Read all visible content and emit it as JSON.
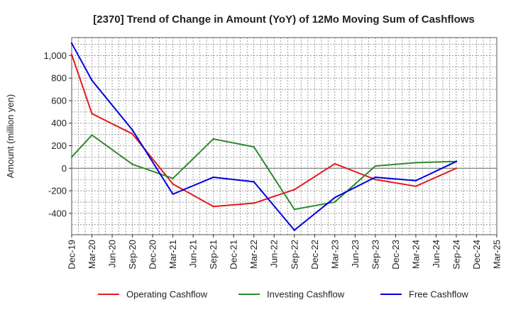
{
  "chart_data": {
    "type": "line",
    "title": "[2370]  Trend of Change in Amount (YoY) of 12Mo Moving Sum of Cashflows",
    "xlabel": "",
    "ylabel": "Amount (million yen)",
    "categories": [
      "Dec-19",
      "Mar-20",
      "Jun-20",
      "Sep-20",
      "Dec-20",
      "Mar-21",
      "Jun-21",
      "Sep-21",
      "Dec-21",
      "Mar-22",
      "Jun-22",
      "Sep-22",
      "Dec-22",
      "Mar-23",
      "Jun-23",
      "Sep-23",
      "Dec-23",
      "Mar-24",
      "Jun-24",
      "Sep-24",
      "Dec-24",
      "Mar-25"
    ],
    "ylim": [
      -590,
      1160
    ],
    "yticks": [
      -400,
      -200,
      0,
      200,
      400,
      600,
      800,
      1000
    ],
    "ytick_labels": [
      "-400",
      "-200",
      "0",
      "200",
      "400",
      "600",
      "800",
      "1,000"
    ],
    "grid": true,
    "series": [
      {
        "name": "Operating Cashflow",
        "color": "#e41a1c",
        "values": [
          1010,
          485,
          null,
          305,
          null,
          -140,
          null,
          -340,
          null,
          -310,
          null,
          -190,
          null,
          40,
          null,
          -100,
          null,
          -160,
          null,
          0,
          null,
          null
        ]
      },
      {
        "name": "Investing Cashflow",
        "color": "#2e8b2e",
        "values": [
          100,
          295,
          null,
          35,
          null,
          -90,
          null,
          260,
          null,
          190,
          null,
          -365,
          null,
          -300,
          null,
          20,
          null,
          50,
          null,
          60,
          null,
          null
        ]
      },
      {
        "name": "Free Cashflow",
        "color": "#0000dd",
        "values": [
          1110,
          780,
          null,
          340,
          null,
          -230,
          null,
          -80,
          null,
          -120,
          null,
          -550,
          null,
          -260,
          null,
          -80,
          null,
          -110,
          null,
          60,
          null,
          null
        ]
      }
    ],
    "legend_position": "bottom"
  }
}
